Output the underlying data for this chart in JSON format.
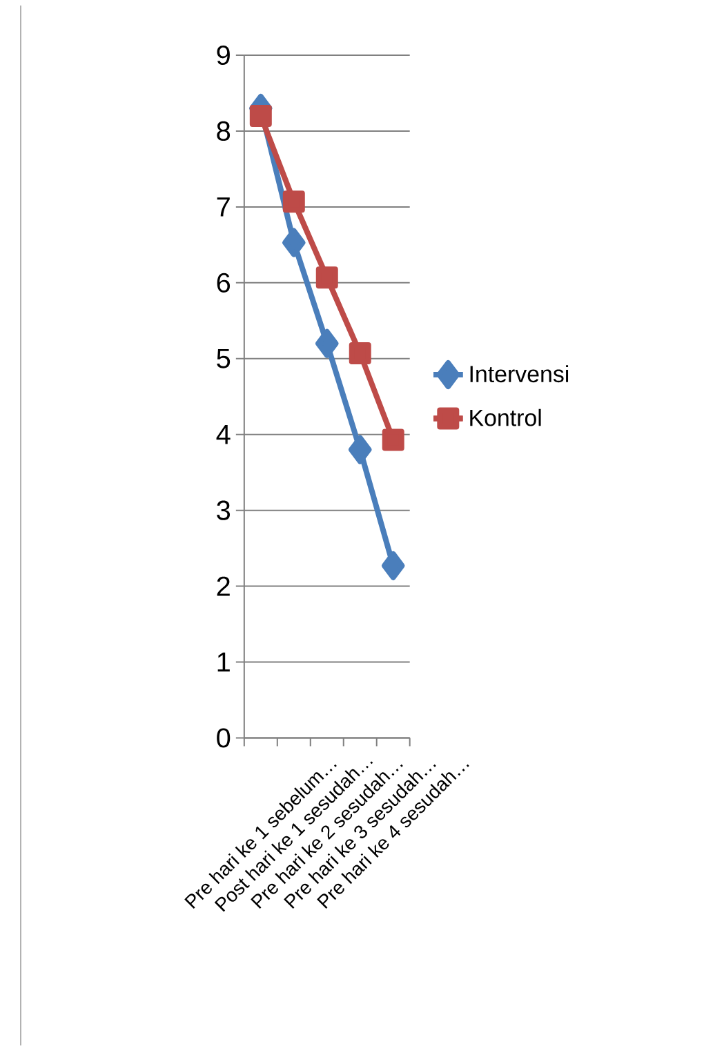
{
  "chart_data": {
    "type": "line",
    "categories": [
      "Pre hari ke 1 sebelum…",
      "Post hari ke 1 sesudah…",
      "Pre hari ke 2 sesudah…",
      "Pre hari ke 3 sesudah…",
      "Pre hari ke 4 sesudah…"
    ],
    "series": [
      {
        "name": "Intervensi",
        "color": "#4a7ebb",
        "marker": "diamond",
        "values": [
          8.3,
          6.53,
          5.2,
          3.8,
          2.27
        ]
      },
      {
        "name": "Kontrol",
        "color": "#be4b48",
        "marker": "square",
        "values": [
          8.2,
          7.07,
          6.07,
          5.07,
          3.93
        ]
      }
    ],
    "ylim": [
      0,
      9
    ],
    "yticks": [
      0,
      1,
      2,
      3,
      4,
      5,
      6,
      7,
      8,
      9
    ],
    "grid": "y",
    "legend": "right"
  }
}
